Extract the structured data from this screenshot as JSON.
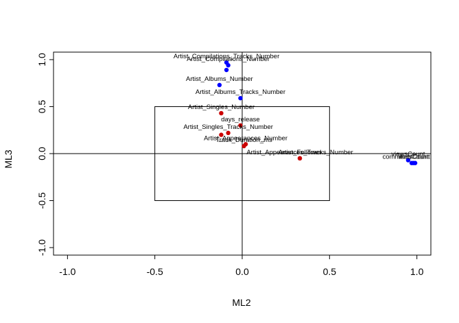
{
  "chart_data": {
    "type": "scatter",
    "xlabel": "ML2",
    "ylabel": "ML3",
    "xlim": [
      -1.08,
      1.08
    ],
    "ylim": [
      -1.08,
      1.08
    ],
    "x_ticks": [
      "-1.0",
      "-0.5",
      "0.0",
      "0.5",
      "1.0"
    ],
    "y_ticks": [
      "-1.0",
      "-0.5",
      "0.0",
      "0.5",
      "1.0"
    ],
    "reference_lines": {
      "x": 0,
      "y": 0
    },
    "inner_box": {
      "x": [
        -0.5,
        0.5
      ],
      "y": [
        -0.5,
        0.5
      ]
    },
    "colors": {
      "blue": "#0000ff",
      "red": "#cc0000",
      "frame": "#000000"
    },
    "points": [
      {
        "label": "Artist_Compilations_Tracks_Number",
        "x": -0.09,
        "y": 0.97,
        "color": "blue"
      },
      {
        "label": "Artist_Compilations_Number",
        "x": -0.08,
        "y": 0.94,
        "color": "blue"
      },
      {
        "label": "",
        "x": -0.09,
        "y": 0.89,
        "color": "blue"
      },
      {
        "label": "Artist_Albums_Number",
        "x": -0.13,
        "y": 0.73,
        "color": "blue"
      },
      {
        "label": "Artist_Albums_Tracks_Number",
        "x": -0.01,
        "y": 0.59,
        "color": "blue"
      },
      {
        "label": "Artist_Singles_Number",
        "x": -0.12,
        "y": 0.43,
        "color": "red"
      },
      {
        "label": "days_release",
        "x": -0.01,
        "y": 0.3,
        "color": "red"
      },
      {
        "label": "Artist_Singles_Tracks_Number",
        "x": -0.08,
        "y": 0.22,
        "color": "red"
      },
      {
        "label": "",
        "x": -0.12,
        "y": 0.2,
        "color": "red"
      },
      {
        "label": "Artist_Appearances_Number",
        "x": 0.02,
        "y": 0.1,
        "color": "red"
      },
      {
        "label": "Track_Duration_ms",
        "x": 0.01,
        "y": 0.08,
        "color": "red"
      },
      {
        "label": "Artist_Appearances_Tracks_Number",
        "x": 0.33,
        "y": -0.05,
        "color": "red"
      },
      {
        "label": "Artist_Follower",
        "x": 0.33,
        "y": -0.05,
        "color": "red"
      },
      {
        "label": "viewsCount",
        "x": 0.95,
        "y": -0.07,
        "color": "blue"
      },
      {
        "label": "commentsCount",
        "x": 0.97,
        "y": -0.1,
        "color": "blue"
      },
      {
        "label": "likesCount",
        "x": 0.98,
        "y": -0.1,
        "color": "blue"
      },
      {
        "label": "",
        "x": 0.99,
        "y": -0.1,
        "color": "blue"
      }
    ]
  }
}
